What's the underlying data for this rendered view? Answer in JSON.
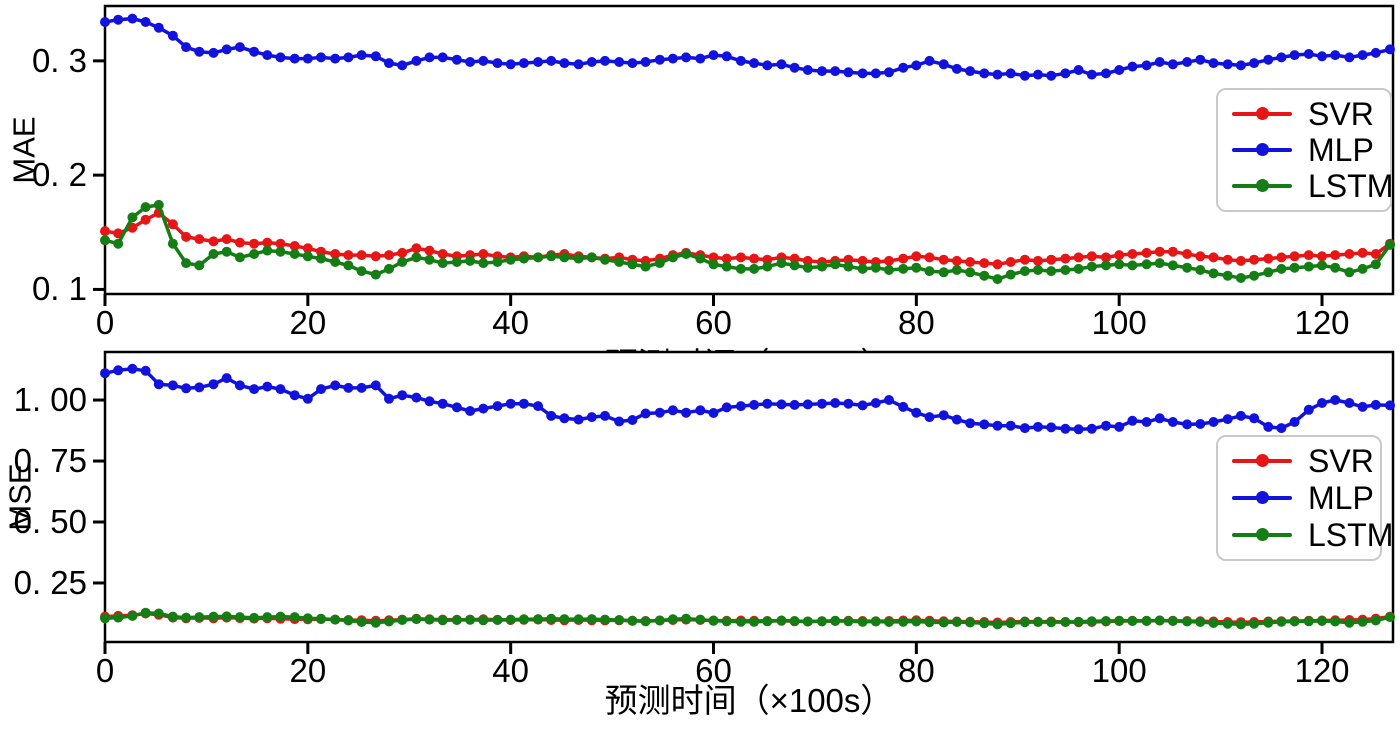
{
  "figure": {
    "background": "#ffffff",
    "axis_color": "#000000",
    "legend_border_color": "#c9c9c9"
  },
  "xlabel": "预测时间（×100s）",
  "legend": {
    "entries": [
      {
        "label": "SVR",
        "color": "#e61616"
      },
      {
        "label": "MLP",
        "color": "#1212dd"
      },
      {
        "label": "LSTM",
        "color": "#147d14"
      }
    ]
  },
  "chart_data": [
    {
      "type": "line",
      "panel": "top",
      "title": "",
      "ylabel": "MAE",
      "xlabel": "",
      "grid": false,
      "legend_position": "right",
      "xlim": [
        0,
        127
      ],
      "ylim": [
        0.096,
        0.348
      ],
      "xticks": [
        0,
        20,
        40,
        60,
        80,
        100,
        120
      ],
      "xtick_labels": [
        "0",
        "20",
        "40",
        "60",
        "80",
        "100",
        "120"
      ],
      "yticks": [
        0.1,
        0.2,
        0.3
      ],
      "ytick_labels": [
        "0. 1",
        "0. 2",
        "0. 3"
      ],
      "x": [
        0,
        1.3,
        2.7,
        4,
        5.3,
        6.7,
        8,
        9.3,
        10.7,
        12,
        13.3,
        14.7,
        16,
        17.3,
        18.7,
        20,
        21.3,
        22.7,
        24,
        25.3,
        26.7,
        28,
        29.3,
        30.7,
        32,
        33.3,
        34.7,
        36,
        37.3,
        38.7,
        40,
        41.3,
        42.7,
        44,
        45.3,
        46.7,
        48,
        49.3,
        50.7,
        52,
        53.3,
        54.7,
        56,
        57.3,
        58.7,
        60,
        61.3,
        62.7,
        64,
        65.3,
        66.7,
        68,
        69.3,
        70.7,
        72,
        73.3,
        74.7,
        76,
        77.3,
        78.7,
        80,
        81.3,
        82.7,
        84,
        85.3,
        86.7,
        88,
        89.3,
        90.7,
        92,
        93.3,
        94.7,
        96,
        97.3,
        98.7,
        100,
        101.3,
        102.7,
        104,
        105.3,
        106.7,
        108,
        109.3,
        110.7,
        112,
        113.3,
        114.7,
        116,
        117.3,
        118.7,
        120,
        121.3,
        122.7,
        124,
        125.3,
        126.7
      ],
      "series": [
        {
          "name": "SVR",
          "color": "#e61616",
          "values": [
            0.151,
            0.149,
            0.154,
            0.161,
            0.167,
            0.157,
            0.146,
            0.144,
            0.142,
            0.144,
            0.141,
            0.14,
            0.141,
            0.14,
            0.138,
            0.136,
            0.133,
            0.131,
            0.13,
            0.13,
            0.129,
            0.13,
            0.132,
            0.136,
            0.134,
            0.131,
            0.129,
            0.13,
            0.131,
            0.129,
            0.128,
            0.129,
            0.128,
            0.13,
            0.131,
            0.129,
            0.128,
            0.127,
            0.128,
            0.126,
            0.125,
            0.127,
            0.13,
            0.132,
            0.13,
            0.128,
            0.127,
            0.128,
            0.127,
            0.126,
            0.128,
            0.127,
            0.125,
            0.124,
            0.125,
            0.126,
            0.125,
            0.124,
            0.125,
            0.127,
            0.129,
            0.128,
            0.126,
            0.125,
            0.124,
            0.123,
            0.122,
            0.124,
            0.126,
            0.125,
            0.126,
            0.127,
            0.128,
            0.129,
            0.128,
            0.13,
            0.131,
            0.132,
            0.133,
            0.133,
            0.131,
            0.129,
            0.128,
            0.126,
            0.125,
            0.126,
            0.127,
            0.128,
            0.129,
            0.13,
            0.129,
            0.13,
            0.131,
            0.132,
            0.131,
            0.14
          ]
        },
        {
          "name": "MLP",
          "color": "#1212dd",
          "values": [
            0.334,
            0.336,
            0.337,
            0.334,
            0.329,
            0.322,
            0.312,
            0.308,
            0.307,
            0.31,
            0.312,
            0.308,
            0.305,
            0.303,
            0.302,
            0.302,
            0.303,
            0.302,
            0.303,
            0.305,
            0.304,
            0.298,
            0.296,
            0.3,
            0.303,
            0.303,
            0.301,
            0.299,
            0.3,
            0.298,
            0.297,
            0.298,
            0.299,
            0.3,
            0.298,
            0.297,
            0.299,
            0.3,
            0.299,
            0.298,
            0.299,
            0.301,
            0.302,
            0.303,
            0.302,
            0.305,
            0.304,
            0.3,
            0.298,
            0.296,
            0.297,
            0.294,
            0.292,
            0.291,
            0.291,
            0.29,
            0.289,
            0.289,
            0.29,
            0.294,
            0.296,
            0.3,
            0.297,
            0.293,
            0.291,
            0.289,
            0.288,
            0.289,
            0.287,
            0.288,
            0.287,
            0.289,
            0.292,
            0.288,
            0.289,
            0.292,
            0.295,
            0.296,
            0.299,
            0.297,
            0.299,
            0.301,
            0.298,
            0.297,
            0.296,
            0.298,
            0.301,
            0.303,
            0.305,
            0.306,
            0.304,
            0.305,
            0.303,
            0.305,
            0.307,
            0.31
          ]
        },
        {
          "name": "LSTM",
          "color": "#147d14",
          "values": [
            0.143,
            0.14,
            0.163,
            0.172,
            0.174,
            0.14,
            0.123,
            0.121,
            0.131,
            0.133,
            0.128,
            0.131,
            0.134,
            0.133,
            0.131,
            0.129,
            0.127,
            0.124,
            0.121,
            0.116,
            0.113,
            0.118,
            0.124,
            0.128,
            0.126,
            0.123,
            0.124,
            0.125,
            0.123,
            0.124,
            0.126,
            0.127,
            0.128,
            0.129,
            0.128,
            0.127,
            0.128,
            0.126,
            0.124,
            0.122,
            0.12,
            0.123,
            0.128,
            0.131,
            0.127,
            0.122,
            0.12,
            0.118,
            0.118,
            0.12,
            0.123,
            0.121,
            0.119,
            0.12,
            0.122,
            0.12,
            0.118,
            0.119,
            0.117,
            0.118,
            0.119,
            0.116,
            0.115,
            0.117,
            0.115,
            0.112,
            0.109,
            0.113,
            0.116,
            0.117,
            0.116,
            0.117,
            0.118,
            0.12,
            0.121,
            0.122,
            0.121,
            0.122,
            0.123,
            0.121,
            0.119,
            0.117,
            0.114,
            0.112,
            0.11,
            0.112,
            0.115,
            0.118,
            0.119,
            0.12,
            0.121,
            0.119,
            0.115,
            0.118,
            0.122,
            0.139
          ]
        }
      ]
    },
    {
      "type": "line",
      "panel": "bottom",
      "title": "",
      "ylabel": "MSE",
      "xlabel": "预测时间（×100s）",
      "grid": false,
      "legend_position": "right",
      "xlim": [
        0,
        127
      ],
      "ylim": [
        0.008,
        1.197
      ],
      "xticks": [
        0,
        20,
        40,
        60,
        80,
        100,
        120
      ],
      "xtick_labels": [
        "0",
        "20",
        "40",
        "60",
        "80",
        "100",
        "120"
      ],
      "yticks": [
        0.25,
        0.5,
        0.75,
        1.0
      ],
      "ytick_labels": [
        "0. 25",
        "0. 50",
        "0. 75",
        "1. 00"
      ],
      "x": [
        0,
        1.3,
        2.7,
        4,
        5.3,
        6.7,
        8,
        9.3,
        10.7,
        12,
        13.3,
        14.7,
        16,
        17.3,
        18.7,
        20,
        21.3,
        22.7,
        24,
        25.3,
        26.7,
        28,
        29.3,
        30.7,
        32,
        33.3,
        34.7,
        36,
        37.3,
        38.7,
        40,
        41.3,
        42.7,
        44,
        45.3,
        46.7,
        48,
        49.3,
        50.7,
        52,
        53.3,
        54.7,
        56,
        57.3,
        58.7,
        60,
        61.3,
        62.7,
        64,
        65.3,
        66.7,
        68,
        69.3,
        70.7,
        72,
        73.3,
        74.7,
        76,
        77.3,
        78.7,
        80,
        81.3,
        82.7,
        84,
        85.3,
        86.7,
        88,
        89.3,
        90.7,
        92,
        93.3,
        94.7,
        96,
        97.3,
        98.7,
        100,
        101.3,
        102.7,
        104,
        105.3,
        106.7,
        108,
        109.3,
        110.7,
        112,
        113.3,
        114.7,
        116,
        117.3,
        118.7,
        120,
        121.3,
        122.7,
        124,
        125.3,
        126.7
      ],
      "series": [
        {
          "name": "SVR",
          "color": "#e61616",
          "values": [
            0.112,
            0.115,
            0.118,
            0.125,
            0.12,
            0.108,
            0.105,
            0.107,
            0.105,
            0.108,
            0.106,
            0.104,
            0.105,
            0.103,
            0.102,
            0.101,
            0.102,
            0.1,
            0.098,
            0.097,
            0.095,
            0.097,
            0.1,
            0.103,
            0.101,
            0.1,
            0.099,
            0.1,
            0.101,
            0.099,
            0.098,
            0.099,
            0.1,
            0.098,
            0.097,
            0.098,
            0.097,
            0.096,
            0.097,
            0.095,
            0.094,
            0.096,
            0.098,
            0.1,
            0.098,
            0.096,
            0.095,
            0.096,
            0.095,
            0.094,
            0.095,
            0.093,
            0.092,
            0.093,
            0.094,
            0.095,
            0.094,
            0.093,
            0.094,
            0.096,
            0.097,
            0.095,
            0.093,
            0.092,
            0.091,
            0.09,
            0.088,
            0.09,
            0.092,
            0.091,
            0.092,
            0.09,
            0.089,
            0.09,
            0.092,
            0.094,
            0.095,
            0.094,
            0.096,
            0.095,
            0.094,
            0.093,
            0.092,
            0.09,
            0.089,
            0.09,
            0.092,
            0.093,
            0.094,
            0.095,
            0.096,
            0.097,
            0.098,
            0.1,
            0.104,
            0.112
          ]
        },
        {
          "name": "MLP",
          "color": "#1212dd",
          "values": [
            1.11,
            1.122,
            1.128,
            1.12,
            1.065,
            1.06,
            1.048,
            1.052,
            1.065,
            1.09,
            1.06,
            1.045,
            1.055,
            1.045,
            1.02,
            1.005,
            1.045,
            1.06,
            1.05,
            1.05,
            1.06,
            1.005,
            1.02,
            1.01,
            0.995,
            0.985,
            0.97,
            0.955,
            0.965,
            0.975,
            0.985,
            0.985,
            0.975,
            0.935,
            0.925,
            0.92,
            0.93,
            0.935,
            0.912,
            0.918,
            0.945,
            0.948,
            0.958,
            0.948,
            0.958,
            0.947,
            0.97,
            0.975,
            0.98,
            0.985,
            0.982,
            0.98,
            0.982,
            0.985,
            0.988,
            0.985,
            0.978,
            0.988,
            1.0,
            0.972,
            0.948,
            0.93,
            0.938,
            0.92,
            0.905,
            0.9,
            0.895,
            0.895,
            0.885,
            0.89,
            0.888,
            0.882,
            0.88,
            0.882,
            0.895,
            0.89,
            0.915,
            0.91,
            0.925,
            0.91,
            0.9,
            0.902,
            0.91,
            0.922,
            0.935,
            0.925,
            0.89,
            0.885,
            0.91,
            0.96,
            0.988,
            1.0,
            0.988,
            0.972,
            0.98,
            0.978
          ]
        },
        {
          "name": "LSTM",
          "color": "#147d14",
          "values": [
            0.105,
            0.108,
            0.115,
            0.128,
            0.125,
            0.112,
            0.108,
            0.11,
            0.112,
            0.113,
            0.11,
            0.107,
            0.11,
            0.112,
            0.11,
            0.105,
            0.103,
            0.1,
            0.096,
            0.09,
            0.087,
            0.092,
            0.098,
            0.102,
            0.1,
            0.097,
            0.098,
            0.099,
            0.097,
            0.098,
            0.1,
            0.101,
            0.102,
            0.103,
            0.102,
            0.101,
            0.102,
            0.1,
            0.098,
            0.095,
            0.093,
            0.096,
            0.101,
            0.104,
            0.1,
            0.095,
            0.093,
            0.091,
            0.091,
            0.093,
            0.096,
            0.094,
            0.092,
            0.093,
            0.095,
            0.093,
            0.091,
            0.092,
            0.09,
            0.091,
            0.092,
            0.089,
            0.088,
            0.09,
            0.088,
            0.085,
            0.08,
            0.085,
            0.089,
            0.09,
            0.089,
            0.09,
            0.091,
            0.093,
            0.094,
            0.095,
            0.094,
            0.095,
            0.096,
            0.094,
            0.092,
            0.09,
            0.086,
            0.083,
            0.08,
            0.083,
            0.087,
            0.091,
            0.092,
            0.093,
            0.094,
            0.092,
            0.087,
            0.091,
            0.096,
            0.11
          ]
        }
      ]
    }
  ]
}
